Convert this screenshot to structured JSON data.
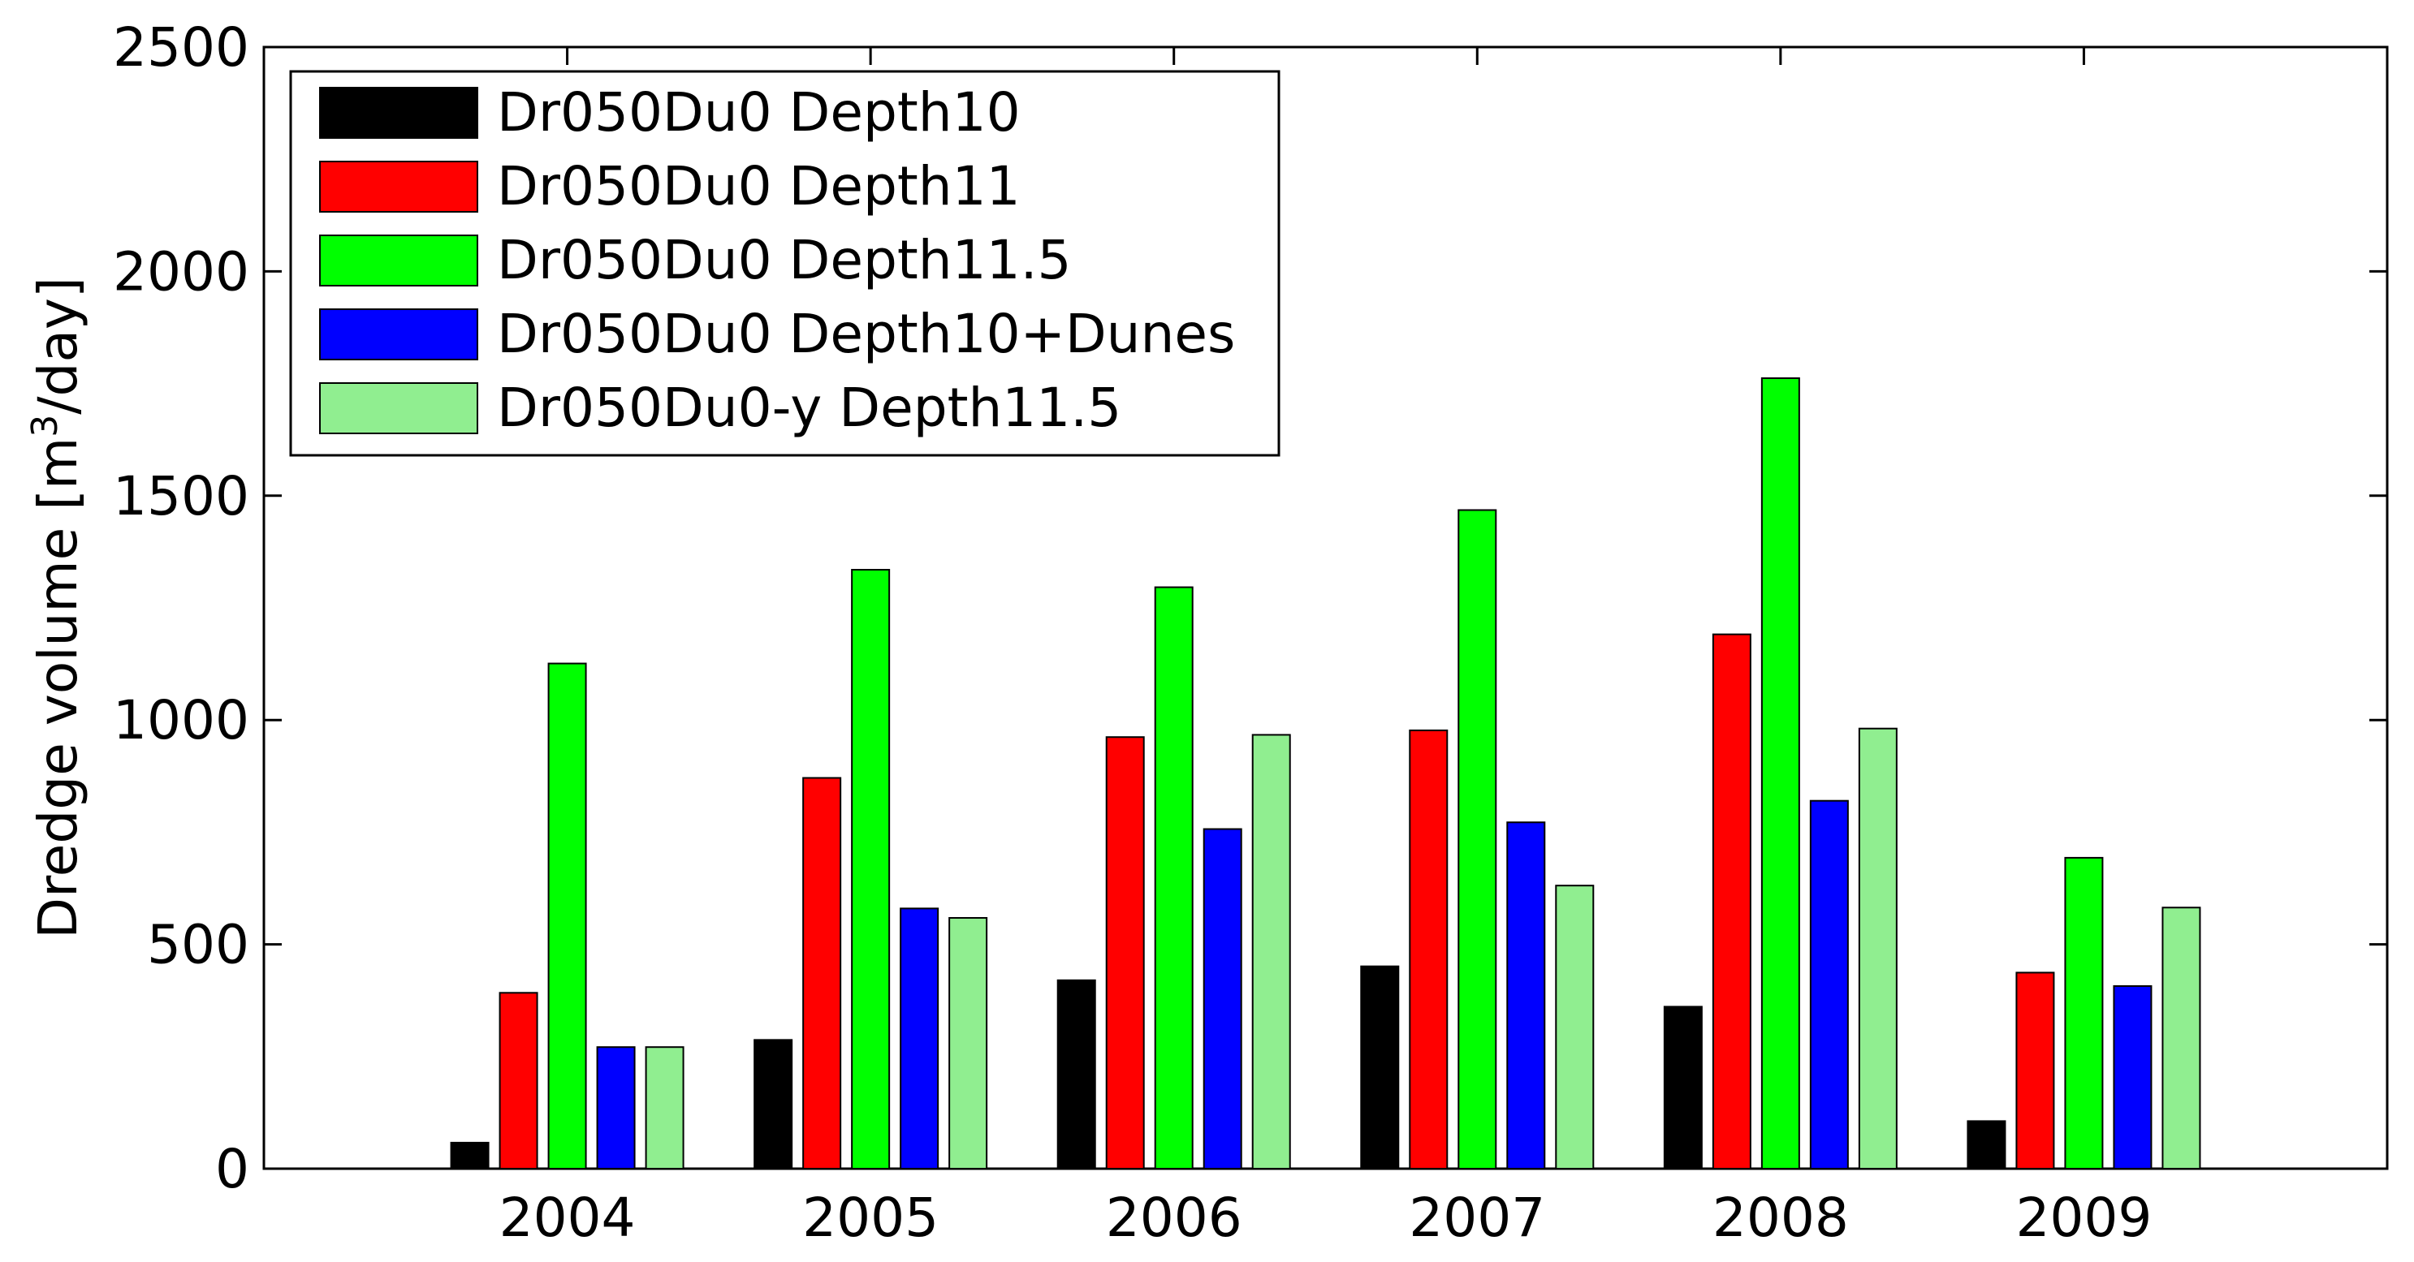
{
  "chart_data": {
    "type": "bar",
    "ylabel_main": "Dredge volume [m",
    "ylabel_sup": "3",
    "ylabel_tail": "/day]",
    "ylim": [
      0,
      2500
    ],
    "yticks": [
      0,
      500,
      1000,
      1500,
      2000,
      2500
    ],
    "categories": [
      "2004",
      "2005",
      "2006",
      "2007",
      "2008",
      "2009"
    ],
    "grid": false,
    "legend_position": "top-left",
    "series": [
      {
        "name": "Dr050Du0 Depth10",
        "color": "#000000",
        "values": [
          58,
          287,
          420,
          451,
          361,
          106
        ]
      },
      {
        "name": "Dr050Du0 Depth11",
        "color": "#ff0000",
        "values": [
          392,
          871,
          962,
          977,
          1191,
          437
        ]
      },
      {
        "name": "Dr050Du0 Depth11.5",
        "color": "#00ff00",
        "values": [
          1126,
          1335,
          1296,
          1468,
          1762,
          693
        ]
      },
      {
        "name": "Dr050Du0 Depth10+Dunes",
        "color": "#0000ff",
        "values": [
          271,
          580,
          757,
          772,
          820,
          407
        ]
      },
      {
        "name": "Dr050Du0-y Depth11.5",
        "color": "#90ee90",
        "values": [
          271,
          559,
          967,
          631,
          981,
          582
        ]
      }
    ]
  }
}
